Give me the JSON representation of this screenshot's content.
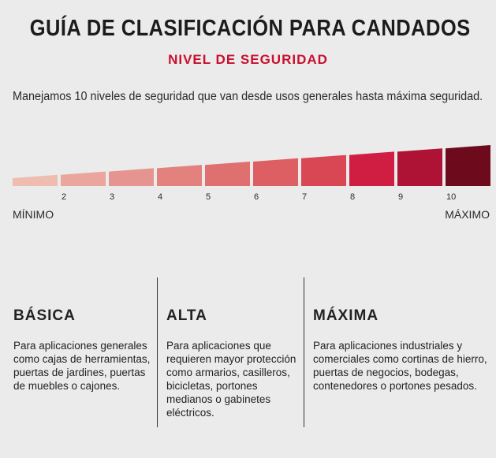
{
  "header": {
    "title": "GUÍA DE CLASIFICACIÓN PARA CANDADOS",
    "subtitle": "NIVEL DE SEGURIDAD"
  },
  "intro": "Manejamos 10 niveles de seguridad que van desde usos generales hasta máxima seguridad.",
  "scale": {
    "min_label": "MÍNIMO",
    "max_label": "MÁXIMO",
    "levels": [
      {
        "label": "",
        "color": "#efbcb0"
      },
      {
        "label": "2",
        "color": "#eaa59c"
      },
      {
        "label": "3",
        "color": "#e6948f"
      },
      {
        "label": "4",
        "color": "#e3817f"
      },
      {
        "label": "5",
        "color": "#e06f70"
      },
      {
        "label": "6",
        "color": "#dd5f63"
      },
      {
        "label": "7",
        "color": "#d94755"
      },
      {
        "label": "8",
        "color": "#d01e43"
      },
      {
        "label": "9",
        "color": "#ae1235"
      },
      {
        "label": "10",
        "color": "#6d0a1c"
      }
    ]
  },
  "categories": [
    {
      "title": "BÁSICA",
      "description": "Para aplicaciones generales como cajas de herramientas, puertas de jardines, puertas de muebles o cajones."
    },
    {
      "title": "ALTA",
      "description": "Para aplicaciones que requieren mayor protección como armarios, casilleros, bicicletas, portones medianos o gabinetes eléctricos."
    },
    {
      "title": "MÁXIMA",
      "description": "Para aplicaciones industriales y comerciales como cortinas de hierro, puertas de negocios, bodegas, contenedores o portones pesados."
    }
  ]
}
